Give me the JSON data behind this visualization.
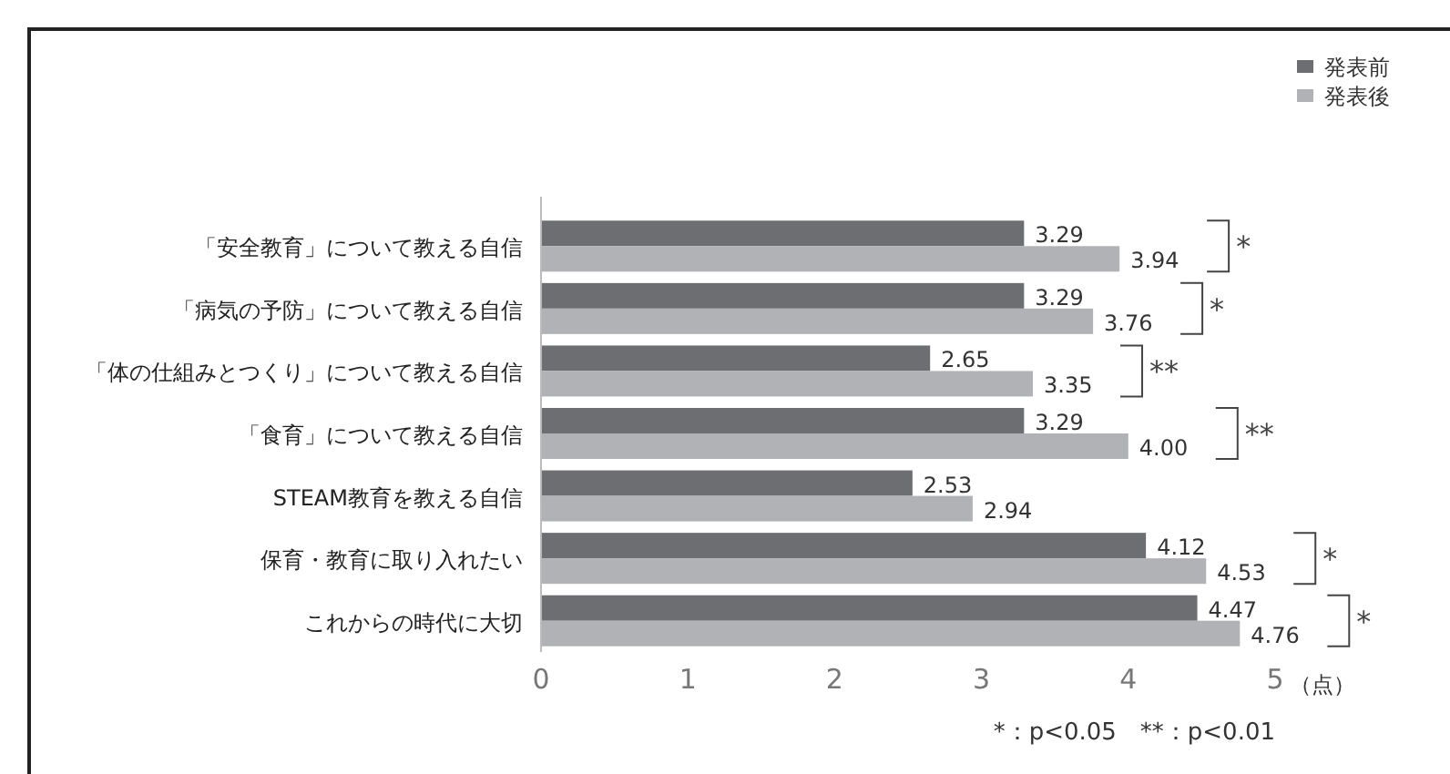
{
  "chart_data": {
    "type": "bar",
    "orientation": "horizontal",
    "xlabel": "（点）",
    "categories": [
      "「安全教育」について教える自信",
      "「病気の予防」について教える自信",
      "「体の仕組みとつくり」について教える自信",
      "「食育」について教える自信",
      "STEAM教育を教える自信",
      "保育・教育に取り入れたい",
      "これからの時代に大切"
    ],
    "series": [
      {
        "name": "発表前",
        "color": "#6d6e71",
        "values": [
          3.29,
          3.29,
          2.65,
          3.29,
          2.53,
          4.12,
          4.47
        ]
      },
      {
        "name": "発表後",
        "color": "#b1b2b5",
        "values": [
          3.94,
          3.76,
          3.35,
          4.0,
          2.94,
          4.53,
          4.76
        ]
      }
    ],
    "value_labels": [
      [
        "3.29",
        "3.29",
        "2.65",
        "3.29",
        "2.53",
        "4.12",
        "4.47"
      ],
      [
        "3.94",
        "3.76",
        "3.35",
        "4.00",
        "2.94",
        "4.53",
        "4.76"
      ]
    ],
    "xlim": [
      0,
      5
    ],
    "xticks": [
      0,
      1,
      2,
      3,
      4,
      5
    ],
    "grid": false,
    "legend": "top right",
    "annotations": [
      "*",
      "*",
      "**",
      "**",
      "*",
      "*",
      "*：p<0.05　**：p<0.01"
    ]
  }
}
